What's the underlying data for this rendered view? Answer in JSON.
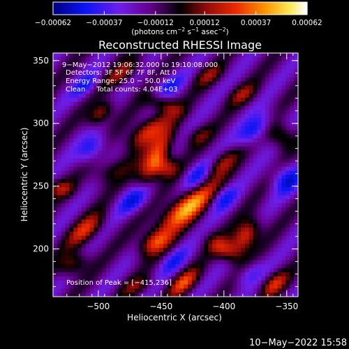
{
  "chart_data": {
    "type": "heatmap",
    "title": "Reconstructed RHESSI Image",
    "xlabel": "Heliocentric X (arcsec)",
    "ylabel": "Heliocentric Y (arcsec)",
    "xlim": [
      -536,
      -341
    ],
    "ylim": [
      162,
      356
    ],
    "x_ticks": [
      -500,
      -450,
      -400,
      -350
    ],
    "x_tick_labels": [
      "−500",
      "−450",
      "−400",
      "−350"
    ],
    "y_ticks": [
      200,
      250,
      300,
      350
    ],
    "y_tick_labels": [
      "200",
      "250",
      "300",
      "350"
    ],
    "colorbar": {
      "min": -0.00062,
      "max": 0.00062,
      "ticks": [
        -0.00062,
        -0.00037,
        -0.00012,
        0.00012,
        0.00037,
        0.00062
      ],
      "tick_labels": [
        "−0.00062",
        "−0.00037",
        "−0.00012",
        "0.00012",
        "0.00037",
        "0.00062"
      ],
      "units_text": "(photons cm",
      "units_exp1": "−2",
      "units_mid": " s",
      "units_exp2": "−1",
      "units_mid2": " asec",
      "units_exp3": "−2",
      "units_end": ")"
    },
    "blobs": [
      {
        "x": -430,
        "y": 233,
        "amp": 0.00062,
        "sx": 20,
        "sy": 7,
        "angle": 40
      },
      {
        "x": -455,
        "y": 270,
        "amp": 0.0005,
        "sx": 18,
        "sy": 6,
        "angle": 62
      },
      {
        "x": -462,
        "y": 293,
        "amp": 0.00044,
        "sx": 14,
        "sy": 6,
        "angle": 40
      },
      {
        "x": -446,
        "y": 265,
        "amp": 0.0003,
        "sx": 7,
        "sy": 6,
        "angle": 0
      },
      {
        "x": -448,
        "y": 315,
        "amp": 0.00026,
        "sx": 11,
        "sy": 5,
        "angle": -20
      },
      {
        "x": -498,
        "y": 308,
        "amp": 0.00036,
        "sx": 9,
        "sy": 5,
        "angle": 45
      },
      {
        "x": -490,
        "y": 262,
        "amp": 0.00022,
        "sx": 12,
        "sy": 6,
        "angle": 30
      },
      {
        "x": -383,
        "y": 210,
        "amp": 0.00048,
        "sx": 11,
        "sy": 6,
        "angle": 55
      },
      {
        "x": -400,
        "y": 200,
        "amp": 0.00034,
        "sx": 10,
        "sy": 6,
        "angle": -30
      },
      {
        "x": -455,
        "y": 205,
        "amp": 0.0004,
        "sx": 10,
        "sy": 6,
        "angle": 30
      },
      {
        "x": -432,
        "y": 173,
        "amp": 0.0004,
        "sx": 10,
        "sy": 5,
        "angle": 40
      },
      {
        "x": -510,
        "y": 215,
        "amp": 0.00036,
        "sx": 12,
        "sy": 6,
        "angle": 40
      },
      {
        "x": -530,
        "y": 248,
        "amp": 0.00026,
        "sx": 8,
        "sy": 5,
        "angle": 0
      },
      {
        "x": -520,
        "y": 188,
        "amp": 0.0003,
        "sx": 9,
        "sy": 6,
        "angle": 30
      },
      {
        "x": -470,
        "y": 170,
        "amp": 0.0002,
        "sx": 9,
        "sy": 5,
        "angle": 20
      },
      {
        "x": -360,
        "y": 172,
        "amp": 0.00035,
        "sx": 9,
        "sy": 5,
        "angle": 40
      },
      {
        "x": -355,
        "y": 290,
        "amp": 0.00028,
        "sx": 7,
        "sy": 8,
        "angle": 60
      },
      {
        "x": -385,
        "y": 323,
        "amp": 0.00024,
        "sx": 9,
        "sy": 5,
        "angle": 30
      },
      {
        "x": -402,
        "y": 268,
        "amp": 0.0003,
        "sx": 12,
        "sy": 5,
        "angle": 40
      },
      {
        "x": -420,
        "y": 290,
        "amp": 0.0002,
        "sx": 8,
        "sy": 5,
        "angle": 30
      },
      {
        "x": -480,
        "y": 340,
        "amp": 0.00028,
        "sx": 12,
        "sy": 5,
        "angle": 35
      },
      {
        "x": -412,
        "y": 338,
        "amp": 0.00022,
        "sx": 9,
        "sy": 5,
        "angle": 30
      },
      {
        "x": -470,
        "y": 240,
        "amp": -0.00035,
        "sx": 11,
        "sy": 6,
        "angle": 40
      },
      {
        "x": -420,
        "y": 258,
        "amp": -0.0003,
        "sx": 10,
        "sy": 6,
        "angle": 40
      },
      {
        "x": -400,
        "y": 240,
        "amp": -0.00025,
        "sx": 9,
        "sy": 6,
        "angle": 40
      },
      {
        "x": -505,
        "y": 280,
        "amp": -0.0003,
        "sx": 10,
        "sy": 6,
        "angle": 45
      },
      {
        "x": -375,
        "y": 295,
        "amp": -0.00035,
        "sx": 12,
        "sy": 6,
        "angle": 45
      },
      {
        "x": -350,
        "y": 255,
        "amp": -0.0003,
        "sx": 9,
        "sy": 8,
        "angle": 40
      },
      {
        "x": -445,
        "y": 330,
        "amp": -0.00025,
        "sx": 10,
        "sy": 5,
        "angle": 30
      },
      {
        "x": -510,
        "y": 330,
        "amp": -0.00025,
        "sx": 10,
        "sy": 5,
        "angle": 40
      },
      {
        "x": -440,
        "y": 190,
        "amp": -0.00022,
        "sx": 10,
        "sy": 5,
        "angle": 40
      },
      {
        "x": -380,
        "y": 180,
        "amp": -0.0002,
        "sx": 9,
        "sy": 5,
        "angle": 40
      }
    ],
    "baseline": -0.00016,
    "ripple": {
      "amp": 0.00011,
      "period": 30,
      "angle": 40
    }
  },
  "annotations": {
    "time_range": "9−May−2012 19:06:32.000 to 19:10:08.000",
    "detectors": "Detectors: 3F 5F 6F 7F 8F, Att 0",
    "energy": "Energy Range: 25.0 − 50.0 keV",
    "clean": "Clean     Total counts: 4.04E+03",
    "peak": "Position of Peak = [−415,236]"
  },
  "footer": {
    "timestamp": "10−May−2022 15:58"
  },
  "colors": {
    "background": "#000000",
    "text": "#ffffff"
  }
}
